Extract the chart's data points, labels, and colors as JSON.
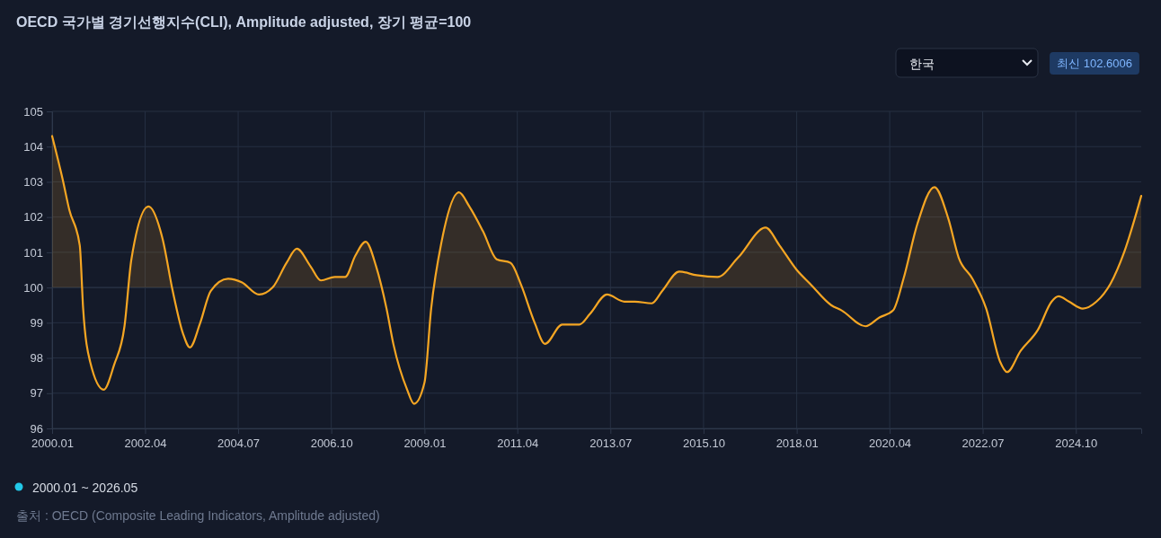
{
  "chart_data": {
    "type": "area",
    "title": "OECD 국가별 경기선행지수(CLI), Amplitude adjusted, 장기 평균=100",
    "annotations": [
      "한국",
      "최신 102.6006",
      "2000.01 ~ 2026.05",
      "출처 : OECD (Composite Leading Indicators, Amplitude adjusted)"
    ],
    "x": [
      "2000-01",
      "2000-04",
      "2000-06",
      "2000-09",
      "2000-10",
      "2000-12",
      "2001-04",
      "2001-07",
      "2001-10",
      "2001-12",
      "2002-05",
      "2002-09",
      "2002-12",
      "2003-03",
      "2003-05",
      "2003-08",
      "2003-11",
      "2004-04",
      "2004-08",
      "2005-01",
      "2005-05",
      "2005-09",
      "2005-12",
      "2006-04",
      "2006-07",
      "2006-11",
      "2007-02",
      "2007-05",
      "2007-08",
      "2007-11",
      "2008-02",
      "2008-04",
      "2008-08",
      "2008-10",
      "2009-01",
      "2009-03",
      "2009-06",
      "2009-11",
      "2010-02",
      "2010-06",
      "2010-10",
      "2011-02",
      "2011-05",
      "2011-09",
      "2011-12",
      "2012-05",
      "2012-10",
      "2013-01",
      "2013-06",
      "2013-11",
      "2014-02",
      "2014-07",
      "2014-10",
      "2015-03",
      "2015-08",
      "2016-02",
      "2016-08",
      "2017-04",
      "2017-08",
      "2018-01",
      "2018-05",
      "2018-11",
      "2019-02",
      "2019-09",
      "2020-01",
      "2020-05",
      "2020-08",
      "2020-12",
      "2021-05",
      "2021-09",
      "2021-12",
      "2022-04",
      "2022-08",
      "2022-12",
      "2023-02",
      "2023-06",
      "2023-11",
      "2024-03",
      "2024-05",
      "2024-08",
      "2024-12",
      "2025-04",
      "2025-08",
      "2025-12",
      "2026-05"
    ],
    "series": [
      {
        "color": "#f5a623",
        "values": [
          104.3,
          103.1,
          102.2,
          101.2,
          99.4,
          97.9,
          97.1,
          97.8,
          98.9,
          100.8,
          102.3,
          101.4,
          99.9,
          98.7,
          98.3,
          99.0,
          99.9,
          100.25,
          100.15,
          99.8,
          100.0,
          100.7,
          101.1,
          100.6,
          100.2,
          100.3,
          100.3,
          100.9,
          101.3,
          100.6,
          99.4,
          98.4,
          97.1,
          96.7,
          97.3,
          99.4,
          101.3,
          102.7,
          102.3,
          101.6,
          100.8,
          100.7,
          100.1,
          99.0,
          98.4,
          98.95,
          98.95,
          99.25,
          99.8,
          99.6,
          99.6,
          99.55,
          99.9,
          100.45,
          100.35,
          100.3,
          100.85,
          101.7,
          101.2,
          100.5,
          100.1,
          99.5,
          99.35,
          98.9,
          99.15,
          99.35,
          100.25,
          101.8,
          102.85,
          101.95,
          100.85,
          100.25,
          99.4,
          97.9,
          97.6,
          98.2,
          98.8,
          99.6,
          99.75,
          99.6,
          99.4,
          99.6,
          100.1,
          101.0,
          102.6
        ]
      }
    ],
    "xlim": [
      "2000-01",
      "2026-05"
    ],
    "xticks": [
      {
        "value": "2000-01",
        "label": "2000.01"
      },
      {
        "value": "2002-04",
        "label": "2002.04"
      },
      {
        "value": "2004-07",
        "label": "2004.07"
      },
      {
        "value": "2006-10",
        "label": "2006.10"
      },
      {
        "value": "2009-01",
        "label": "2009.01"
      },
      {
        "value": "2011-04",
        "label": "2011.04"
      },
      {
        "value": "2013-07",
        "label": "2013.07"
      },
      {
        "value": "2015-10",
        "label": "2015.10"
      },
      {
        "value": "2018-01",
        "label": "2018.01"
      },
      {
        "value": "2020-04",
        "label": "2020.04"
      },
      {
        "value": "2022-07",
        "label": "2022.07"
      },
      {
        "value": "2024-10",
        "label": "2024.10"
      }
    ],
    "ylim": [
      96,
      105
    ],
    "yticks": [
      96,
      97,
      98,
      99,
      100,
      101,
      102,
      103,
      104,
      105
    ],
    "ref_lines": [
      {
        "axis": "y",
        "value": 100,
        "color": "#2a3344"
      }
    ],
    "grid": true,
    "marker": "none",
    "line_style": "solid"
  }
}
